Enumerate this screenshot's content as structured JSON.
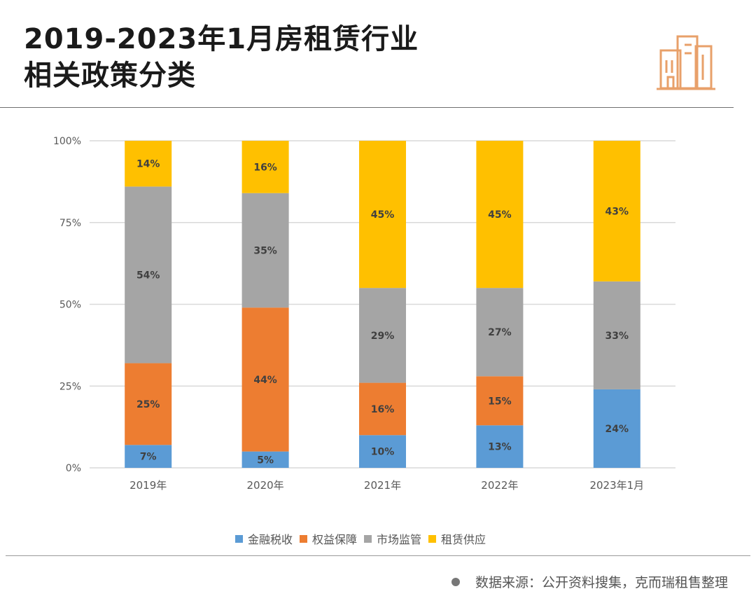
{
  "title": {
    "line1": "2019-2023年1月房租赁行业",
    "line2": "相关政策分类"
  },
  "header_icon": "city-buildings-icon",
  "source": {
    "text": "数据来源：公开资料搜集，克而瑞租售整理"
  },
  "colors": {
    "金融税收": "#5b9bd5",
    "权益保障": "#ed7d31",
    "市场监管": "#a5a5a5",
    "租赁供应": "#ffc000",
    "accent_icon": "#e8a06a"
  },
  "chart_data": {
    "type": "bar",
    "stacked": true,
    "categories": [
      "2019年",
      "2020年",
      "2021年",
      "2022年",
      "2023年1月"
    ],
    "series": [
      {
        "name": "金融税收",
        "values": [
          7,
          5,
          10,
          13,
          24
        ],
        "labels": [
          "7%",
          "5%",
          "10%",
          "13%",
          "24%"
        ]
      },
      {
        "name": "权益保障",
        "values": [
          25,
          44,
          16,
          15,
          0
        ],
        "labels": [
          "25%",
          "44%",
          "16%",
          "15%",
          ""
        ]
      },
      {
        "name": "市场监管",
        "values": [
          54,
          35,
          29,
          27,
          33
        ],
        "labels": [
          "54%",
          "35%",
          "29%",
          "27%",
          "33%"
        ]
      },
      {
        "name": "租赁供应",
        "values": [
          14,
          16,
          45,
          45,
          43
        ],
        "labels": [
          "14%",
          "16%",
          "45%",
          "45%",
          "43%"
        ]
      }
    ],
    "ylim": [
      0,
      100
    ],
    "yticks": [
      0,
      25,
      50,
      75,
      100
    ],
    "ytick_labels": [
      "0%",
      "25%",
      "50%",
      "75%",
      "100%"
    ],
    "grid": true,
    "legend_position": "bottom",
    "xlabel": "",
    "ylabel": ""
  }
}
